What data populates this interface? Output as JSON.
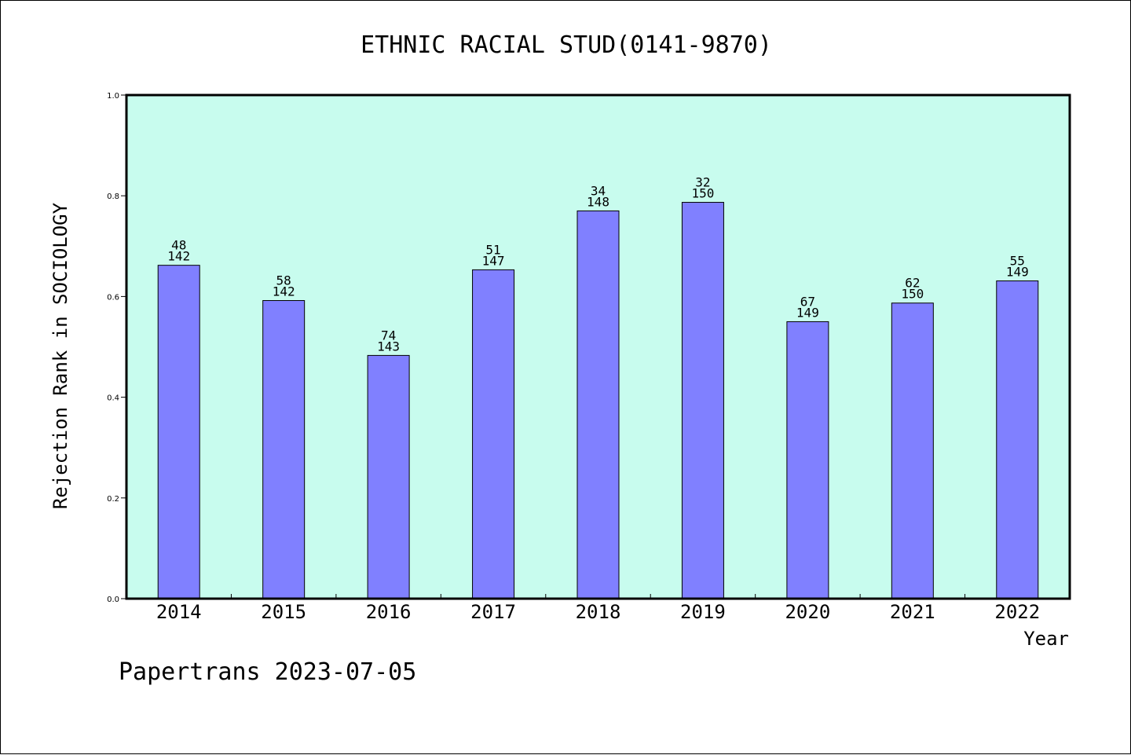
{
  "chart_data": {
    "type": "bar",
    "title": "ETHNIC RACIAL STUD(0141-9870)",
    "xlabel": "Year",
    "ylabel": "Rejection Rank in SOCIOLOGY",
    "ylim": [
      0,
      1.0
    ],
    "yticks": [
      "0.0",
      "0.2",
      "0.4",
      "0.6",
      "0.8",
      "1.0"
    ],
    "ytick_values": [
      0.0,
      0.2,
      0.4,
      0.6,
      0.8,
      1.0
    ],
    "categories": [
      "2014",
      "2015",
      "2016",
      "2017",
      "2018",
      "2019",
      "2020",
      "2021",
      "2022"
    ],
    "values": [
      0.662,
      0.592,
      0.483,
      0.653,
      0.77,
      0.787,
      0.55,
      0.587,
      0.631
    ],
    "ranks": [
      "48",
      "58",
      "74",
      "51",
      "34",
      "32",
      "67",
      "62",
      "55"
    ],
    "totals": [
      "142",
      "142",
      "143",
      "147",
      "148",
      "150",
      "149",
      "150",
      "149"
    ],
    "grid": false,
    "colors": {
      "plot_background": "#c8fcee",
      "bar_fill": "#8080ff",
      "bar_stroke": "#000000",
      "axis": "#000000"
    }
  },
  "footer": {
    "text": "Papertrans 2023-07-05"
  }
}
